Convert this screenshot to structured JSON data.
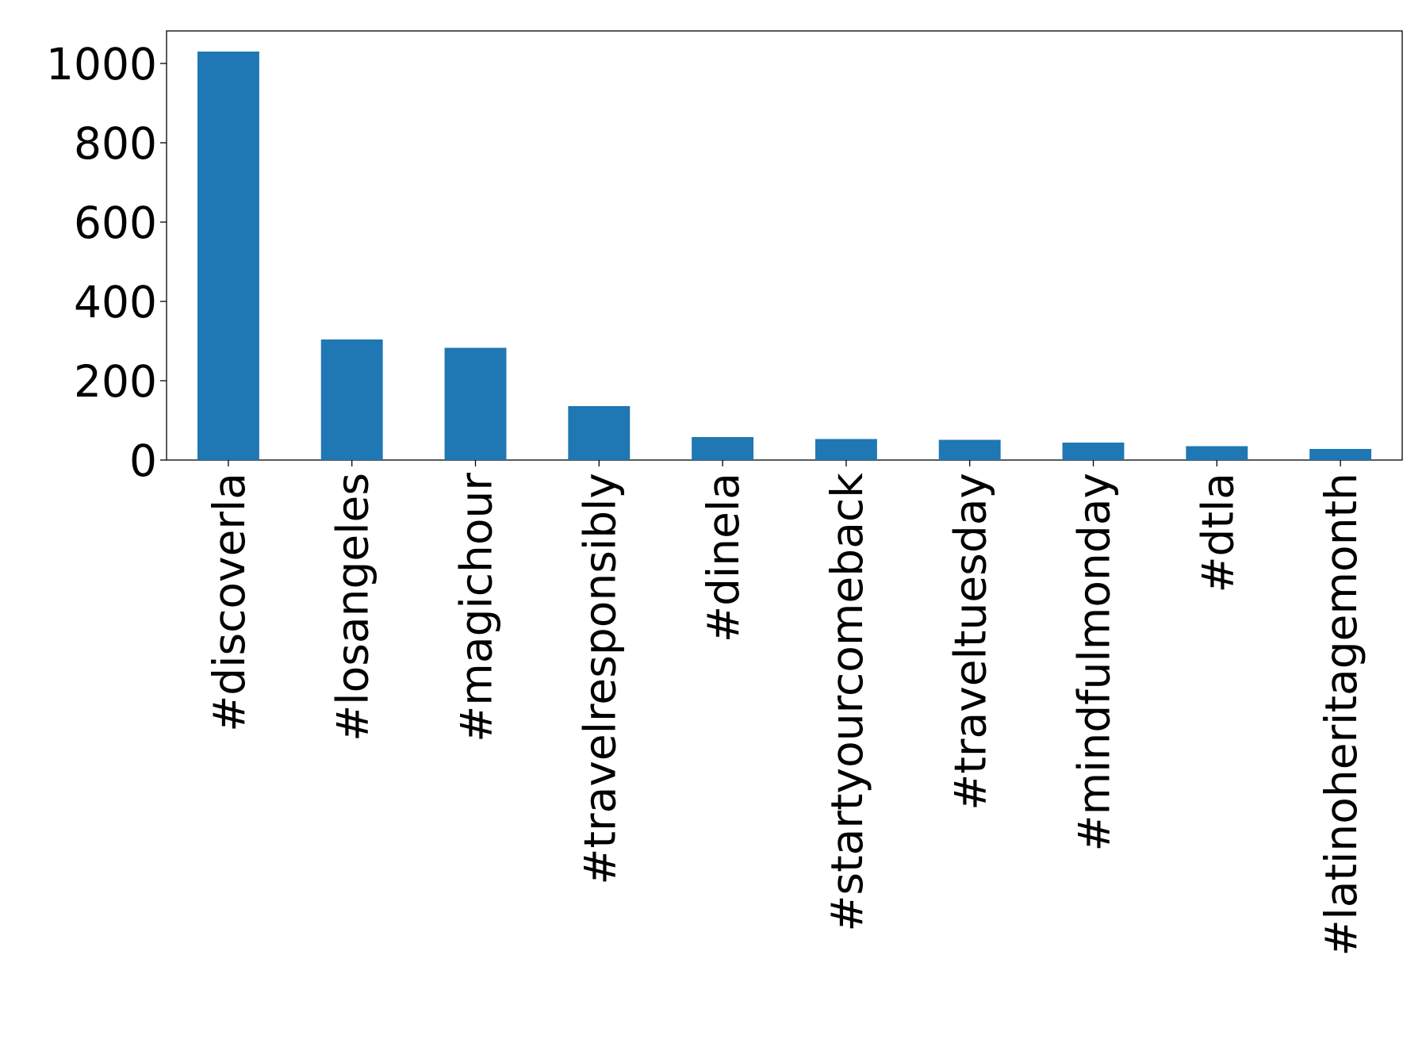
{
  "chart_data": {
    "type": "bar",
    "categories": [
      "#discoverla",
      "#losangeles",
      "#magichour",
      "#travelresponsibly",
      "#dinela",
      "#startyourcomeback",
      "#traveltuesday",
      "#mindfulmonday",
      "#dtla",
      "#latinoheritagemonth"
    ],
    "values": [
      1030,
      304,
      283,
      136,
      58,
      53,
      51,
      44,
      35,
      28
    ],
    "color": "#1f77b4",
    "ylim": [
      0,
      1082
    ],
    "yticks": [
      0,
      200,
      400,
      600,
      800,
      1000
    ],
    "grid": false
  }
}
